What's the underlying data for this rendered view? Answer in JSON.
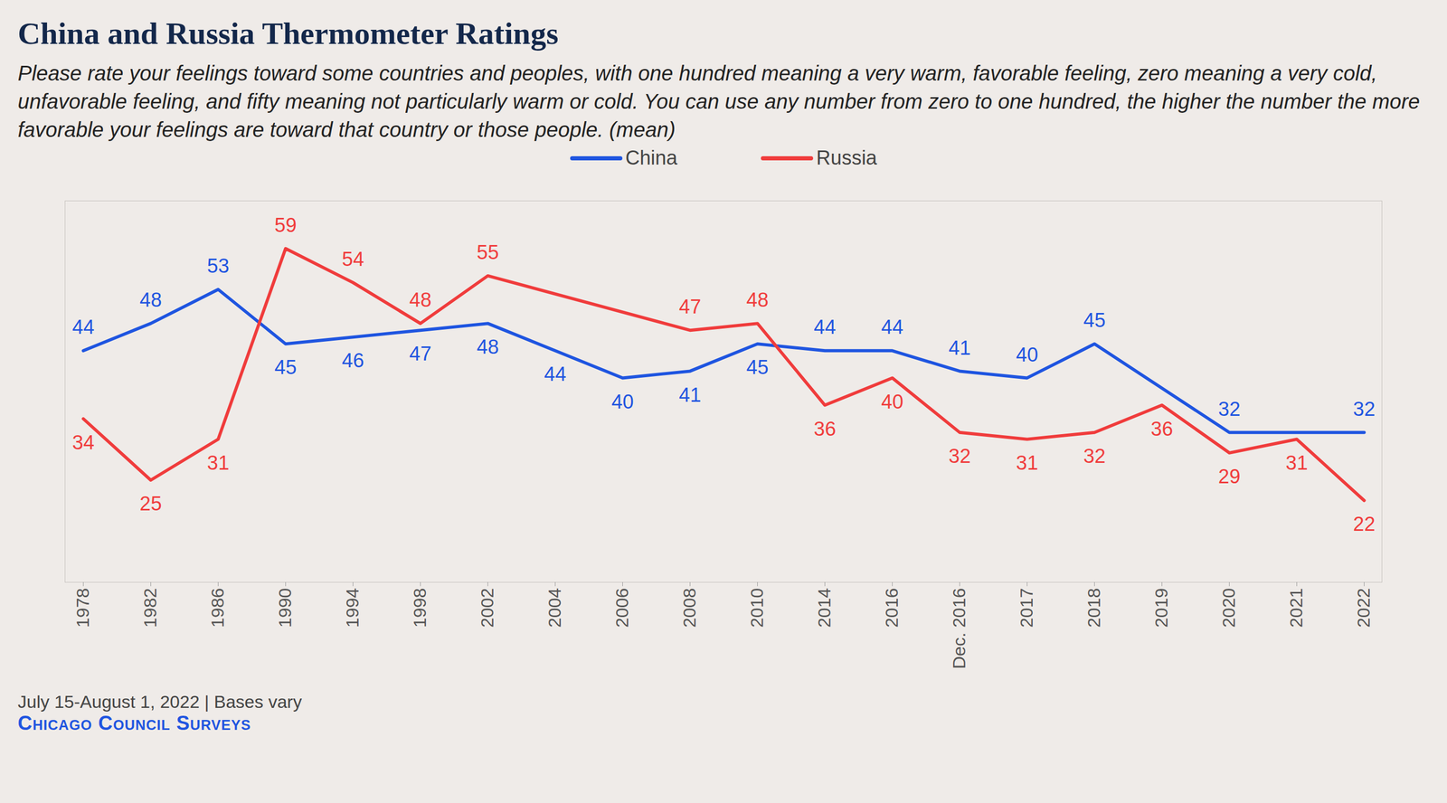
{
  "chart_data": {
    "type": "line",
    "title": "China and Russia Thermometer Ratings",
    "subtitle": "Please rate your feelings toward some countries and peoples, with one hundred meaning a very warm, favorable feeling, zero meaning a very cold, unfavorable feeling, and fifty meaning not particularly warm or cold. You can use any number from zero to one hundred, the higher the number the more favorable your feelings are toward that country or those people. (mean)",
    "categories": [
      "1978",
      "1982",
      "1986",
      "1990",
      "1994",
      "1998",
      "2002",
      "2004",
      "2006",
      "2008",
      "2010",
      "2014",
      "2016",
      "Dec. 2016",
      "2017",
      "2018",
      "2019",
      "2020",
      "2021",
      "2022"
    ],
    "series": [
      {
        "name": "China",
        "color": "#1f55e0",
        "values": [
          44,
          48,
          53,
          45,
          46,
          47,
          48,
          44,
          40,
          41,
          45,
          44,
          44,
          41,
          40,
          45,
          null,
          32,
          null,
          32
        ]
      },
      {
        "name": "Russia",
        "color": "#f03c3c",
        "values": [
          34,
          25,
          31,
          59,
          54,
          48,
          55,
          null,
          null,
          47,
          48,
          36,
          40,
          32,
          31,
          32,
          36,
          29,
          31,
          22
        ]
      }
    ],
    "ylim": [
      10,
      66
    ],
    "tick_labels": "x",
    "grid": false,
    "data_labels": true,
    "legend": "top",
    "caption": "July 15-August 1, 2022 | Bases vary",
    "source": "Chicago Council Surveys"
  }
}
